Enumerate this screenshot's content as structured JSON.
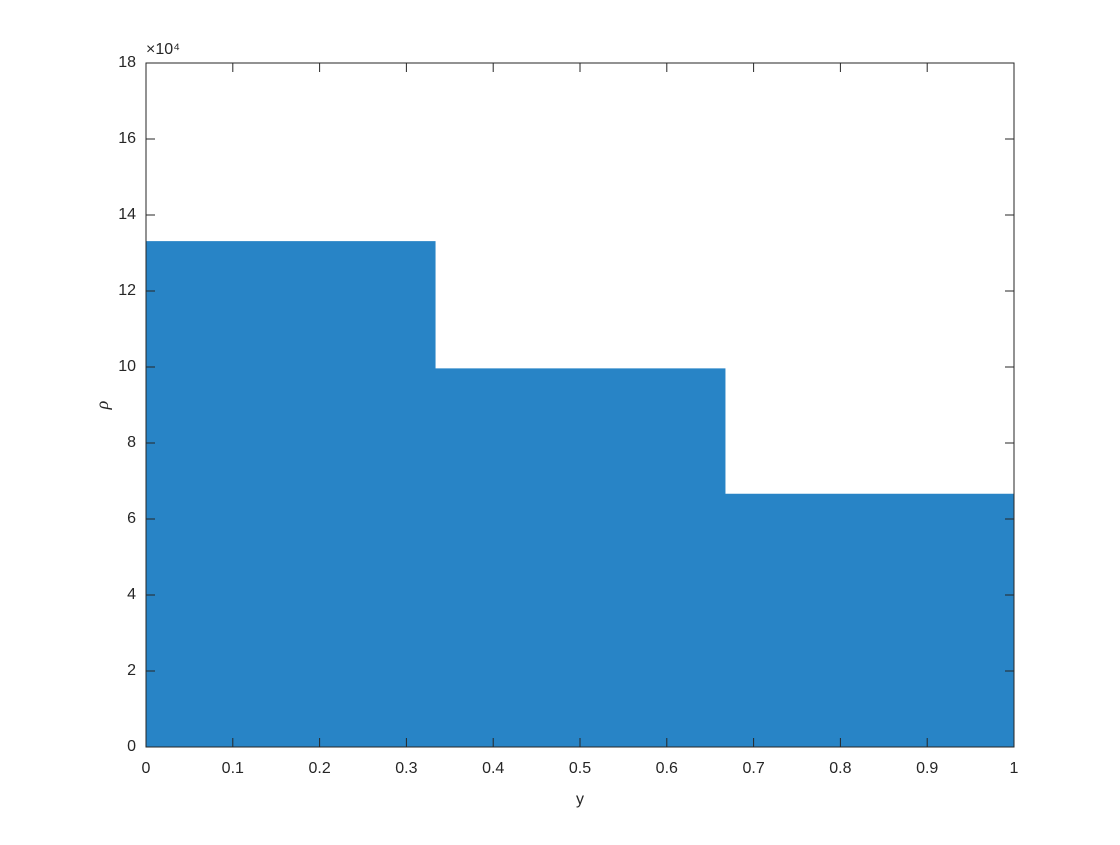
{
  "chart_data": {
    "type": "area",
    "x_label": "y",
    "y_label": "ρ",
    "y_multiplier": "×10⁴",
    "color": "#2884c6",
    "series": [
      {
        "x": [
          0,
          0.333,
          0.333,
          0.667,
          0.667,
          1
        ],
        "values": [
          13.3,
          13.3,
          9.95,
          9.95,
          6.65,
          6.65
        ]
      }
    ],
    "xlim": [
      0,
      1
    ],
    "xticks": [
      0,
      0.1,
      0.2,
      0.3,
      0.4,
      0.5,
      0.6,
      0.7,
      0.8,
      0.9,
      1
    ],
    "ylim": [
      0,
      18
    ],
    "yticks": [
      0,
      2,
      4,
      6,
      8,
      10,
      12,
      14,
      16,
      18
    ],
    "grid": false
  }
}
